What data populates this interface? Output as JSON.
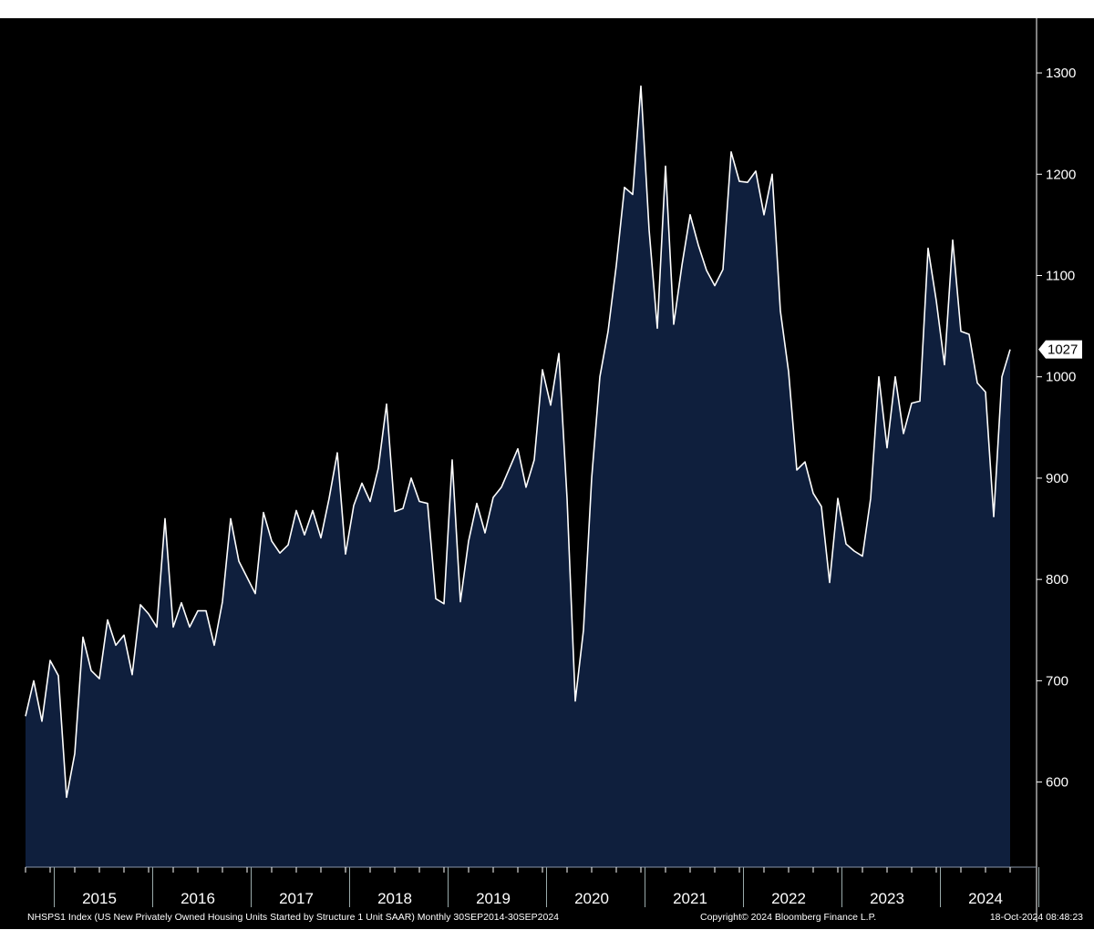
{
  "chart_data": {
    "type": "area",
    "title": "NHSPS1 Index (US New Privately Owned Housing Units Started by Structure 1 Unit SAAR)",
    "frequency": "Monthly",
    "date_range": "30SEP2014-30SEP2024",
    "x_start": "2014-09",
    "x_end": "2024-09",
    "xlabel": "",
    "ylabel": "",
    "ylim": [
      516,
      1354
    ],
    "yticks": [
      600,
      700,
      800,
      900,
      1000,
      1100,
      1200,
      1300
    ],
    "year_labels": [
      "2015",
      "2016",
      "2017",
      "2018",
      "2019",
      "2020",
      "2021",
      "2022",
      "2023",
      "2024"
    ],
    "last_value_label": "1027",
    "grid": false,
    "axis_position": "right",
    "series": [
      {
        "name": "NHSPS1 Index",
        "color": "#ffffff",
        "fill": "#0f1f3d",
        "values": [
          665,
          700,
          660,
          720,
          705,
          585,
          628,
          743,
          710,
          702,
          760,
          735,
          745,
          706,
          775,
          766,
          753,
          860,
          753,
          777,
          753,
          769,
          769,
          735,
          778,
          860,
          818,
          802,
          786,
          866,
          838,
          826,
          834,
          868,
          844,
          868,
          841,
          880,
          925,
          825,
          873,
          895,
          877,
          910,
          973,
          867,
          870,
          900,
          877,
          875,
          781,
          776,
          918,
          778,
          838,
          875,
          846,
          881,
          891,
          910,
          929,
          891,
          918,
          1007,
          972,
          1023,
          880,
          680,
          750,
          900,
          1000,
          1045,
          1110,
          1187,
          1180,
          1287,
          1145,
          1048,
          1208,
          1052,
          1110,
          1160,
          1130,
          1105,
          1090,
          1106,
          1222,
          1193,
          1192,
          1203,
          1160,
          1200,
          1065,
          1005,
          908,
          916,
          885,
          872,
          797,
          880,
          835,
          828,
          823,
          880,
          1000,
          930,
          1000,
          944,
          974,
          976,
          1127,
          1075,
          1012,
          1135,
          1045,
          1042,
          994,
          985,
          862,
          1000,
          1027
        ]
      }
    ]
  },
  "footer": {
    "description": "NHSPS1 Index (US New Privately Owned Housing Units Started by Structure 1 Unit SAAR)  Monthly 30SEP2014-30SEP2024",
    "copyright": "Copyright© 2024 Bloomberg Finance L.P.",
    "timestamp": "18-Oct-2024 08:48:23"
  }
}
